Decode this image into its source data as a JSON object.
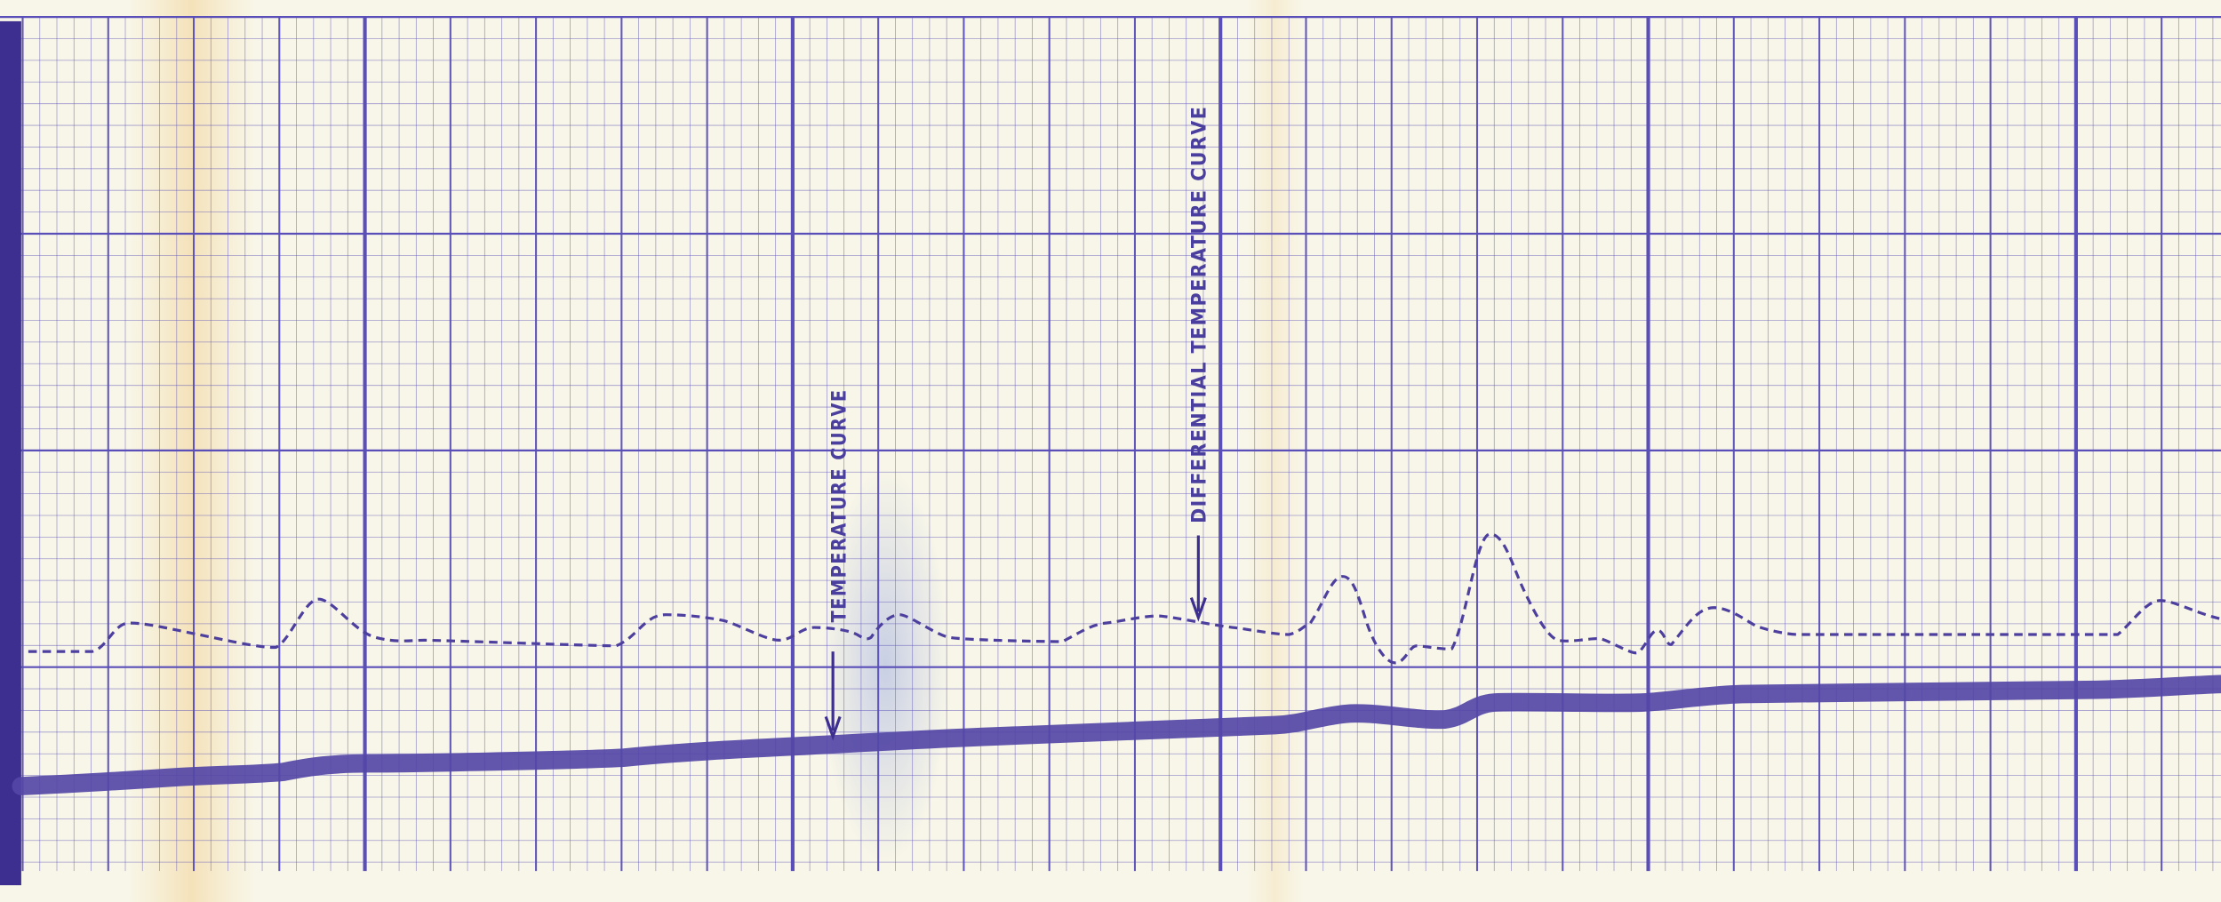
{
  "labels": {
    "temperature_curve": "TEMPERATURE CURVE",
    "differential_temperature_curve": "DIFFERENTIAL TEMPERATURE CURVE"
  }
}
